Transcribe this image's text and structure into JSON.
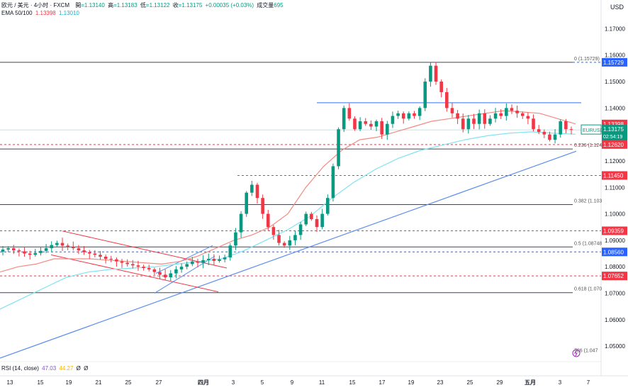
{
  "header": {
    "symbol_line": "欧元 / 美元 · 4小时 · FXCM",
    "open_label": "開",
    "open_value": "=1.13140",
    "high_label": "高",
    "high_value": "=1.13183",
    "low_label": "低",
    "low_value": "=1.13122",
    "close_label": "收",
    "close_value": "=1.13175",
    "change": "+0.00035 (+0.03%)",
    "volume_label": "成交量",
    "volume_value": "695",
    "ema_label": "EMA 50/100",
    "ema50_value": "1.13398",
    "ema100_value": "1.13010",
    "currency": "USD"
  },
  "rsi": {
    "label": "RSI (14, close)",
    "value1": "47.03",
    "value2": "44.27",
    "value3": "Ø",
    "value4": "Ø"
  },
  "colors": {
    "up": "#089981",
    "down": "#f23645",
    "ema50": "#f28b82",
    "ema100": "#7fe3f0",
    "trend": "#5b8def",
    "level_red": "#f23645",
    "level_blue": "#2962ff",
    "fib_line": "#434651"
  },
  "chart_data": {
    "type": "candlestick",
    "title": "欧元 / 美元 · 4小时 · FXCM",
    "x_tick_labels": [
      "13",
      "15",
      "19",
      "21",
      "25",
      "27",
      "四月",
      "3",
      "5",
      "9",
      "11",
      "15",
      "17",
      "19",
      "23",
      "25",
      "29",
      "五月",
      "3",
      "7"
    ],
    "y_tick_labels": [
      "1.17000",
      "1.16000",
      "1.15000",
      "1.14000",
      "1.13000",
      "1.12000",
      "1.11000",
      "1.10000",
      "1.09000",
      "1.08000",
      "1.07000",
      "1.06000",
      "1.05000"
    ],
    "y_ticks": [
      1.17,
      1.16,
      1.15,
      1.14,
      1.13,
      1.12,
      1.11,
      1.1,
      1.09,
      1.08,
      1.07,
      1.06,
      1.05
    ],
    "ylim": [
      1.045,
      1.18
    ],
    "price_close_series": [
      1.0865,
      1.087,
      1.0862,
      1.0858,
      1.085,
      1.0845,
      1.0852,
      1.086,
      1.087,
      1.0882,
      1.089,
      1.088,
      1.0875,
      1.087,
      1.0862,
      1.0855,
      1.085,
      1.0845,
      1.0838,
      1.083,
      1.0828,
      1.082,
      1.0815,
      1.081,
      1.0805,
      1.08,
      1.0795,
      1.079,
      1.078,
      1.077,
      1.076,
      1.0775,
      1.079,
      1.08,
      1.081,
      1.082,
      1.0815,
      1.0825,
      1.083,
      1.0822,
      1.0828,
      1.0835,
      1.088,
      1.093,
      1.1,
      1.108,
      1.111,
      1.106,
      1.1,
      1.095,
      1.092,
      1.089,
      1.088,
      1.09,
      1.092,
      1.096,
      1.1,
      1.098,
      1.095,
      1.1,
      1.106,
      1.118,
      1.132,
      1.14,
      1.136,
      1.132,
      1.135,
      1.134,
      1.133,
      1.135,
      1.13,
      1.134,
      1.137,
      1.138,
      1.136,
      1.138,
      1.137,
      1.14,
      1.15,
      1.156,
      1.15,
      1.146,
      1.14,
      1.138,
      1.136,
      1.132,
      1.136,
      1.134,
      1.138,
      1.134,
      1.136,
      1.138,
      1.137,
      1.14,
      1.139,
      1.138,
      1.137,
      1.136,
      1.132,
      1.131,
      1.13,
      1.128,
      1.13,
      1.135,
      1.132,
      1.1318
    ],
    "ema50_series": [
      1.078,
      1.08,
      1.081,
      1.083,
      1.083,
      1.083,
      1.0825,
      1.082,
      1.0815,
      1.081,
      1.082,
      1.084,
      1.087,
      1.09,
      1.092,
      1.095,
      1.1,
      1.11,
      1.118,
      1.124,
      1.128,
      1.129,
      1.131,
      1.133,
      1.135,
      1.136,
      1.137,
      1.138,
      1.139,
      1.1385,
      1.138,
      1.136,
      1.134
    ],
    "ema100_series": [
      1.064,
      1.068,
      1.072,
      1.076,
      1.078,
      1.079,
      1.0795,
      1.08,
      1.081,
      1.082,
      1.083,
      1.086,
      1.09,
      1.094,
      1.099,
      1.106,
      1.112,
      1.117,
      1.121,
      1.124,
      1.126,
      1.128,
      1.1295,
      1.1305,
      1.131,
      1.1305,
      1.1301
    ],
    "series": [
      {
        "name": "EURUSD",
        "last": 1.13175
      },
      {
        "name": "EMA 50",
        "last": 1.13398
      },
      {
        "name": "EMA 100",
        "last": 1.1301
      }
    ],
    "levels": [
      {
        "price": 1.15729,
        "label": "1.15729",
        "color": "#2962ff",
        "style": "dashed"
      },
      {
        "price": 1.13398,
        "label": "1.13398",
        "color": "#f23645",
        "style": "label-only"
      },
      {
        "price": 1.1262,
        "label": "1.12620",
        "color": "#f23645",
        "style": "dashed"
      },
      {
        "price": 1.1145,
        "label": "1.11450",
        "color": "#f23645",
        "style": "dashed"
      },
      {
        "price": 1.09359,
        "label": "1.09359",
        "color": "#f23645",
        "style": "dashed"
      },
      {
        "price": 1.0856,
        "label": "1.08560",
        "color": "#2962ff",
        "style": "dashed"
      },
      {
        "price": 1.07652,
        "label": "1.07652",
        "color": "#f23645",
        "style": "dashed"
      }
    ],
    "fib_levels": [
      {
        "ratio_label": "0 (1.15729)",
        "price": 1.15729
      },
      {
        "ratio_label": "0.236 (1.124",
        "price": 1.1245
      },
      {
        "ratio_label": "0.382 (1.103",
        "price": 1.1035
      },
      {
        "ratio_label": "0.5 (1.08748",
        "price": 1.08748
      },
      {
        "ratio_label": "0.618 (1.070",
        "price": 1.0702
      },
      {
        "ratio_label": "786 (1.047",
        "price": 1.047
      }
    ],
    "current_price_box": {
      "symbol": "EURUSD",
      "price": "1.13175",
      "countdown": "02:54:19"
    },
    "resistance_line_price": 1.142
  }
}
